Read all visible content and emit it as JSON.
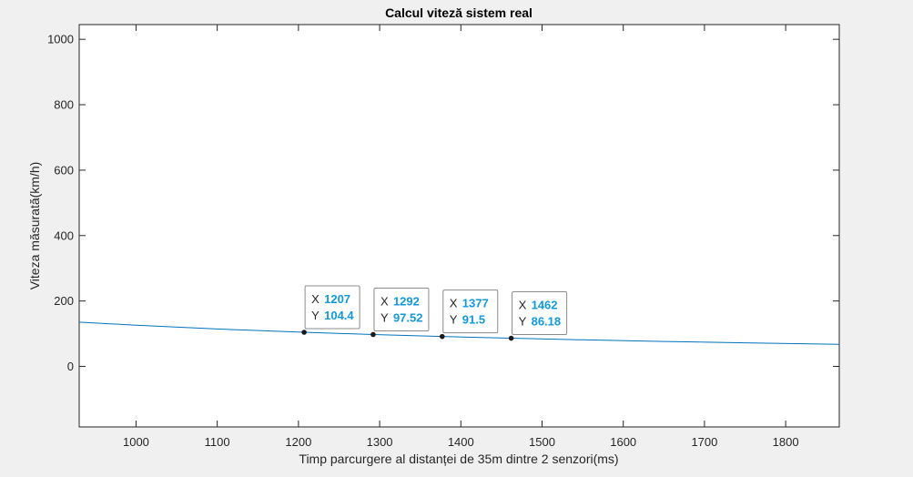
{
  "chart_data": {
    "type": "line",
    "title": "Calcul viteză sistem real",
    "xlabel": "Timp parcurgere al distanței de 35m dintre 2 senzori(ms)",
    "ylabel": "Viteza măsurată(km/h)",
    "xlim": [
      930,
      1866
    ],
    "ylim": [
      -185,
      1045
    ],
    "xticks": [
      1000,
      1100,
      1200,
      1300,
      1400,
      1500,
      1600,
      1700,
      1800
    ],
    "yticks": [
      0,
      200,
      400,
      600,
      800,
      1000
    ],
    "grid": false,
    "series": [
      {
        "color": "#0072bd",
        "x": [
          930,
          1000,
          1100,
          1207,
          1292,
          1377,
          1462,
          1550,
          1650,
          1750,
          1866
        ],
        "y": [
          135.5,
          126.0,
          114.5,
          104.4,
          97.52,
          91.5,
          86.18,
          81.3,
          76.4,
          72.0,
          67.5
        ]
      }
    ],
    "datatips": [
      {
        "x_label": "X",
        "y_label": "Y",
        "x": "1207",
        "y": "104.4",
        "x_value": 1207,
        "y_value": 104.4
      },
      {
        "x_label": "X",
        "y_label": "Y",
        "x": "1292",
        "y": "97.52",
        "x_value": 1292,
        "y_value": 97.52
      },
      {
        "x_label": "X",
        "y_label": "Y",
        "x": "1377",
        "y": "91.5",
        "x_value": 1377,
        "y_value": 91.5
      },
      {
        "x_label": "X",
        "y_label": "Y",
        "x": "1462",
        "y": "86.18",
        "x_value": 1462,
        "y_value": 86.18
      }
    ],
    "colors": {
      "figure_bg": "#f0f0f0",
      "axes_bg": "#ffffff",
      "axes_line": "#262626",
      "line": "#0072bd",
      "datatip_value": "#0f9ae0",
      "datatip_border": "#8c8c8c",
      "marker": "#1a1a1a"
    }
  }
}
